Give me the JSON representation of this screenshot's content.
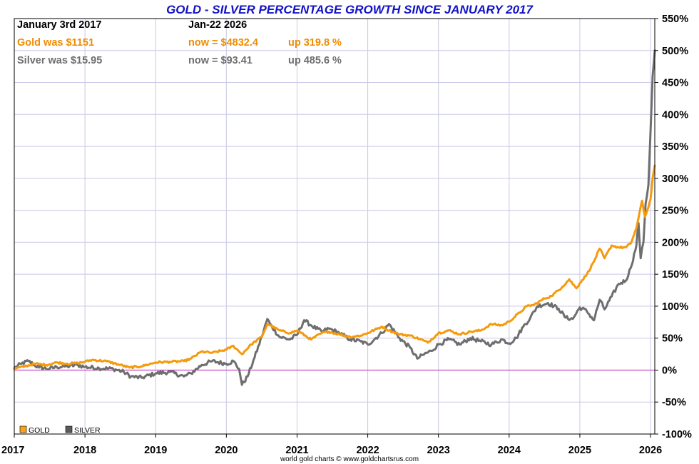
{
  "chart_data": {
    "type": "line",
    "title": "GOLD - SILVER PERCENTAGE GROWTH SINCE JANUARY 2017",
    "xlabel": "",
    "ylabel": "",
    "xlim": [
      2017,
      2026.06
    ],
    "ylim": [
      -100,
      550
    ],
    "ytick_values": [
      550,
      500,
      450,
      400,
      350,
      300,
      250,
      200,
      150,
      100,
      50,
      0,
      -50,
      -100
    ],
    "ytick_labels": [
      "550%",
      "500%",
      "450%",
      "400%",
      "350%",
      "300%",
      "250%",
      "200%",
      "150%",
      "100%",
      "50%",
      "0%",
      "-50%",
      "-100%"
    ],
    "xtick_values": [
      2017,
      2018,
      2019,
      2020,
      2021,
      2022,
      2023,
      2024,
      2025,
      2026
    ],
    "xtick_labels": [
      "2017",
      "2018",
      "2019",
      "2020",
      "2021",
      "2022",
      "2023",
      "2024",
      "2025",
      "2026"
    ],
    "baseline": 0,
    "colors": {
      "gold": "#f59a0c",
      "silver": "#6e6e6e",
      "title": "#1212c8",
      "baseline": "#c23bc4",
      "grid": "#c8c8e6",
      "gold_text": "#f08c00",
      "silver_text": "#6e6e6e",
      "legend_gold_swatch": "#f7a21c",
      "legend_silver_swatch": "#5a5a5a"
    },
    "header": {
      "start_label": "January 3rd 2017",
      "end_label": "Jan-22  2026",
      "gold_start": "Gold was $1151",
      "gold_now": "now = $4832.4",
      "gold_change": "up 319.8 %",
      "silver_start": "Silver was $15.95",
      "silver_now": "now = $93.41",
      "silver_change": "up 485.6 %"
    },
    "legend": [
      "GOLD",
      "SILVER"
    ],
    "credit": "world gold charts © www.goldchartsrus.com",
    "series": [
      {
        "name": "GOLD",
        "x": [
          2017.0,
          2017.15,
          2017.3,
          2017.45,
          2017.6,
          2017.75,
          2017.9,
          2018.0,
          2018.1,
          2018.3,
          2018.5,
          2018.63,
          2018.8,
          2019.0,
          2019.2,
          2019.4,
          2019.5,
          2019.65,
          2019.8,
          2020.0,
          2020.1,
          2020.18,
          2020.22,
          2020.35,
          2020.5,
          2020.58,
          2020.62,
          2020.75,
          2020.9,
          2021.0,
          2021.2,
          2021.35,
          2021.45,
          2021.6,
          2021.75,
          2021.9,
          2022.0,
          2022.2,
          2022.3,
          2022.45,
          2022.6,
          2022.75,
          2022.85,
          2023.0,
          2023.15,
          2023.3,
          2023.45,
          2023.6,
          2023.75,
          2023.9,
          2024.0,
          2024.15,
          2024.25,
          2024.35,
          2024.5,
          2024.6,
          2024.75,
          2024.85,
          2024.95,
          2025.0,
          2025.1,
          2025.2,
          2025.28,
          2025.35,
          2025.45,
          2025.55,
          2025.65,
          2025.72,
          2025.8,
          2025.83,
          2025.88,
          2025.92,
          2025.97,
          2026.0,
          2026.03,
          2026.06
        ],
        "values": [
          2,
          6,
          10,
          8,
          12,
          10,
          11,
          13,
          16,
          14,
          8,
          4,
          6,
          12,
          13,
          14,
          18,
          29,
          27,
          32,
          38,
          29,
          25,
          40,
          52,
          72,
          70,
          62,
          58,
          62,
          48,
          58,
          60,
          56,
          52,
          54,
          58,
          68,
          62,
          56,
          54,
          48,
          43,
          58,
          62,
          56,
          60,
          62,
          72,
          70,
          76,
          90,
          100,
          102,
          112,
          116,
          130,
          142,
          128,
          136,
          150,
          170,
          190,
          175,
          195,
          192,
          192,
          198,
          222,
          238,
          265,
          240,
          255,
          268,
          300,
          320
        ]
      },
      {
        "name": "SILVER",
        "x": [
          2017.0,
          2017.1,
          2017.2,
          2017.35,
          2017.5,
          2017.6,
          2017.75,
          2017.9,
          2018.0,
          2018.2,
          2018.4,
          2018.55,
          2018.65,
          2018.8,
          2019.0,
          2019.2,
          2019.4,
          2019.5,
          2019.65,
          2019.8,
          2020.0,
          2020.1,
          2020.18,
          2020.22,
          2020.3,
          2020.4,
          2020.5,
          2020.58,
          2020.62,
          2020.75,
          2020.9,
          2021.0,
          2021.1,
          2021.2,
          2021.35,
          2021.45,
          2021.6,
          2021.75,
          2021.9,
          2022.0,
          2022.2,
          2022.3,
          2022.45,
          2022.6,
          2022.7,
          2022.8,
          2022.9,
          2023.0,
          2023.15,
          2023.3,
          2023.45,
          2023.6,
          2023.75,
          2023.9,
          2024.0,
          2024.1,
          2024.2,
          2024.3,
          2024.4,
          2024.55,
          2024.7,
          2024.8,
          2024.9,
          2025.0,
          2025.1,
          2025.2,
          2025.28,
          2025.35,
          2025.45,
          2025.55,
          2025.65,
          2025.72,
          2025.8,
          2025.83,
          2025.86,
          2025.9,
          2025.93,
          2025.97,
          2026.0,
          2026.03,
          2026.06
        ],
        "values": [
          3,
          10,
          14,
          4,
          2,
          5,
          6,
          8,
          5,
          3,
          2,
          -3,
          -10,
          -12,
          -5,
          -3,
          -10,
          -5,
          8,
          14,
          10,
          14,
          2,
          -23,
          -10,
          20,
          52,
          80,
          72,
          52,
          48,
          55,
          78,
          70,
          60,
          65,
          58,
          48,
          45,
          40,
          58,
          72,
          50,
          35,
          18,
          25,
          30,
          40,
          48,
          40,
          50,
          45,
          40,
          48,
          42,
          50,
          68,
          82,
          100,
          105,
          96,
          82,
          80,
          98,
          92,
          78,
          110,
          95,
          115,
          135,
          140,
          160,
          195,
          230,
          175,
          200,
          260,
          290,
          375,
          460,
          500
        ]
      }
    ]
  }
}
